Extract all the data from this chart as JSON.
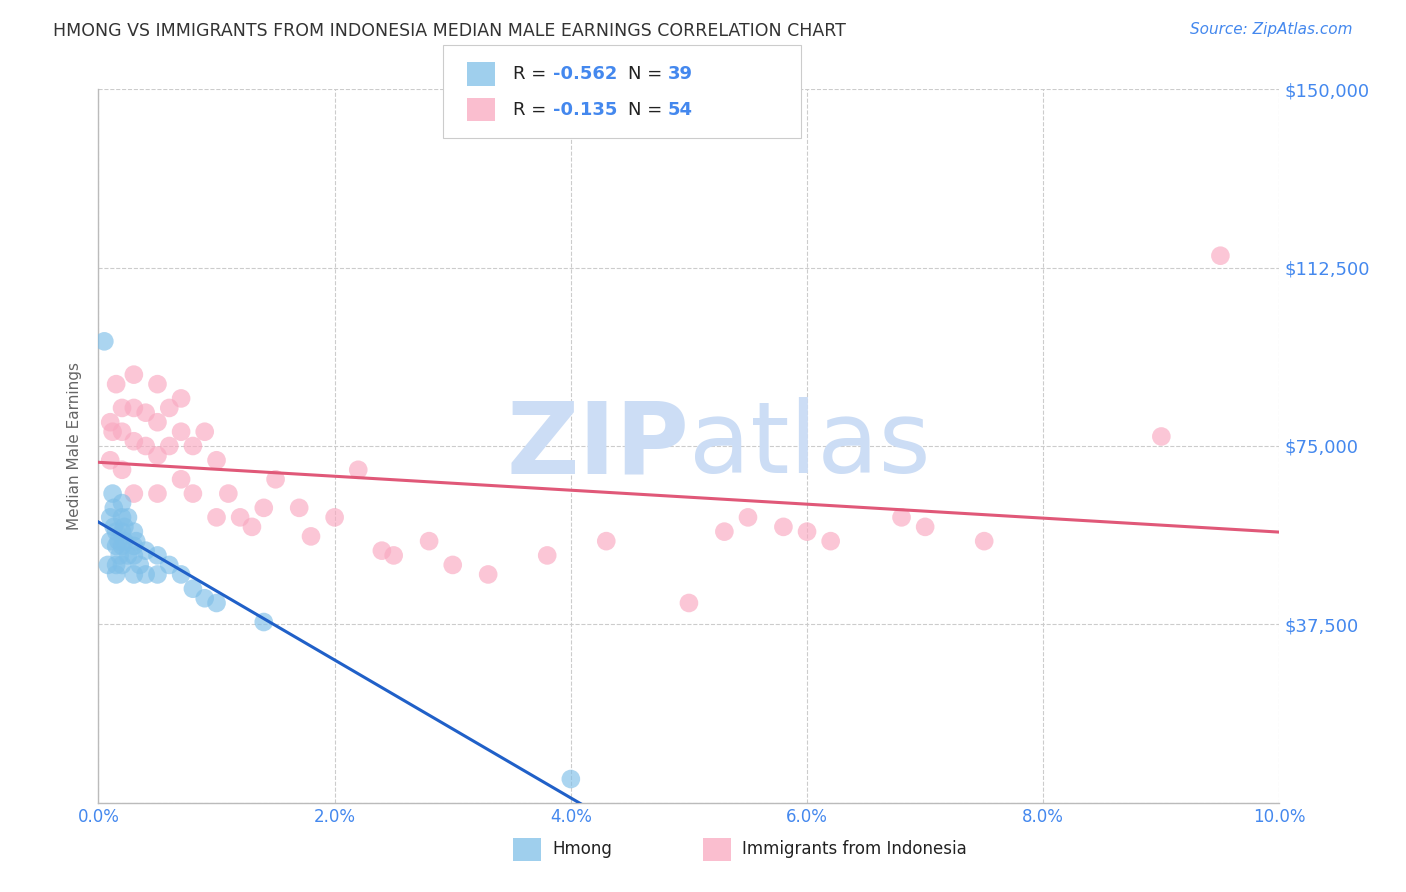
{
  "title": "HMONG VS IMMIGRANTS FROM INDONESIA MEDIAN MALE EARNINGS CORRELATION CHART",
  "source": "Source: ZipAtlas.com",
  "ylabel": "Median Male Earnings",
  "xlim": [
    0,
    0.1
  ],
  "ylim": [
    0,
    150000
  ],
  "yticks": [
    0,
    37500,
    75000,
    112500,
    150000
  ],
  "ytick_labels": [
    "",
    "$37,500",
    "$75,000",
    "$112,500",
    "$150,000"
  ],
  "xticks": [
    0.0,
    0.02,
    0.04,
    0.06,
    0.08,
    0.1
  ],
  "xtick_labels": [
    "0.0%",
    "2.0%",
    "4.0%",
    "6.0%",
    "8.0%",
    "10.0%"
  ],
  "hmong_R": -0.562,
  "hmong_N": 39,
  "indonesia_R": -0.135,
  "indonesia_N": 54,
  "hmong_color": "#7fbfe8",
  "indonesia_color": "#f9a8c0",
  "hmong_line_color": "#2060c8",
  "indonesia_line_color": "#e05878",
  "background_color": "#ffffff",
  "grid_color": "#cccccc",
  "title_color": "#333333",
  "axis_label_color": "#4488ee",
  "watermark_color": "#ccddf5",
  "hmong_x": [
    0.0005,
    0.0008,
    0.001,
    0.001,
    0.0012,
    0.0013,
    0.0013,
    0.0015,
    0.0015,
    0.0015,
    0.0015,
    0.0017,
    0.0018,
    0.002,
    0.002,
    0.002,
    0.002,
    0.002,
    0.0022,
    0.0022,
    0.0025,
    0.0025,
    0.003,
    0.003,
    0.003,
    0.003,
    0.0032,
    0.0035,
    0.004,
    0.004,
    0.005,
    0.005,
    0.006,
    0.007,
    0.008,
    0.009,
    0.01,
    0.014,
    0.04
  ],
  "hmong_y": [
    97000,
    50000,
    60000,
    55000,
    65000,
    62000,
    58000,
    57000,
    54000,
    50000,
    48000,
    55000,
    52000,
    63000,
    60000,
    57000,
    54000,
    50000,
    58000,
    55000,
    60000,
    52000,
    57000,
    54000,
    52000,
    48000,
    55000,
    50000,
    53000,
    48000,
    52000,
    48000,
    50000,
    48000,
    45000,
    43000,
    42000,
    38000,
    5000
  ],
  "indonesia_x": [
    0.001,
    0.001,
    0.0012,
    0.0015,
    0.002,
    0.002,
    0.002,
    0.003,
    0.003,
    0.003,
    0.003,
    0.004,
    0.004,
    0.005,
    0.005,
    0.005,
    0.005,
    0.006,
    0.006,
    0.007,
    0.007,
    0.007,
    0.008,
    0.008,
    0.009,
    0.01,
    0.01,
    0.011,
    0.012,
    0.013,
    0.014,
    0.015,
    0.017,
    0.018,
    0.02,
    0.022,
    0.024,
    0.025,
    0.028,
    0.03,
    0.033,
    0.038,
    0.043,
    0.05,
    0.053,
    0.055,
    0.058,
    0.06,
    0.062,
    0.068,
    0.07,
    0.075,
    0.09,
    0.095
  ],
  "indonesia_y": [
    80000,
    72000,
    78000,
    88000,
    83000,
    78000,
    70000,
    90000,
    83000,
    76000,
    65000,
    82000,
    75000,
    88000,
    80000,
    73000,
    65000,
    83000,
    75000,
    85000,
    78000,
    68000,
    75000,
    65000,
    78000,
    72000,
    60000,
    65000,
    60000,
    58000,
    62000,
    68000,
    62000,
    56000,
    60000,
    70000,
    53000,
    52000,
    55000,
    50000,
    48000,
    52000,
    55000,
    42000,
    57000,
    60000,
    58000,
    57000,
    55000,
    60000,
    58000,
    55000,
    77000,
    115000
  ]
}
